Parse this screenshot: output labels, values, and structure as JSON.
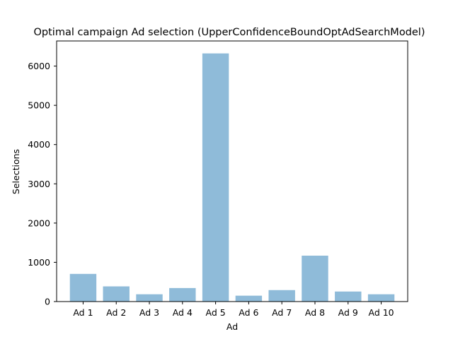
{
  "chart_data": {
    "type": "bar",
    "title": "Optimal campaign Ad selection (UpperConfidenceBoundOptAdSearchModel)",
    "xlabel": "Ad",
    "ylabel": "Selections",
    "categories": [
      "Ad 1",
      "Ad 2",
      "Ad 3",
      "Ad 4",
      "Ad 5",
      "Ad 6",
      "Ad 7",
      "Ad 8",
      "Ad 9",
      "Ad 10"
    ],
    "values": [
      705,
      387,
      186,
      345,
      6323,
      150,
      292,
      1170,
      256,
      186
    ],
    "ylim": [
      0,
      6640
    ],
    "yticks": [
      0,
      1000,
      2000,
      3000,
      4000,
      5000,
      6000
    ],
    "ytick_labels": [
      "0",
      "1000",
      "2000",
      "3000",
      "4000",
      "5000",
      "6000"
    ],
    "grid": false,
    "bar_color": "#8fbbd9"
  }
}
